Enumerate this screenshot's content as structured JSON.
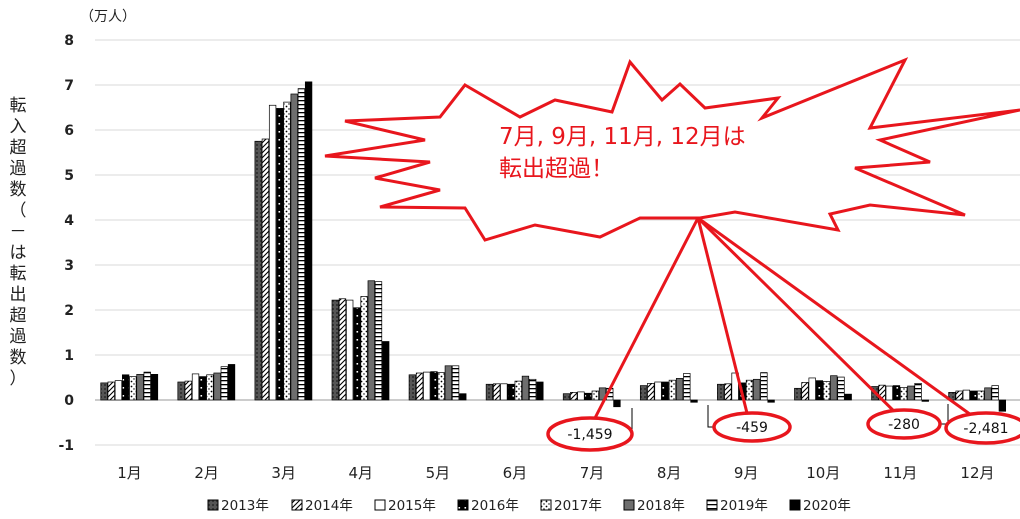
{
  "chart_data": {
    "type": "bar",
    "unit": "（万人）",
    "ylabel": "転入超過数（－は転出超過数）",
    "ylim": [
      -1,
      8
    ],
    "yticks": [
      -1,
      0,
      1,
      2,
      3,
      4,
      5,
      6,
      7,
      8
    ],
    "grid": true,
    "legend_position": "bottom",
    "categories": [
      "1月",
      "2月",
      "3月",
      "4月",
      "5月",
      "6月",
      "7月",
      "8月",
      "9月",
      "10月",
      "11月",
      "12月"
    ],
    "series": [
      {
        "name": "2013年",
        "values": [
          0.38,
          0.4,
          5.75,
          2.22,
          0.56,
          0.35,
          0.14,
          0.32,
          0.35,
          0.26,
          0.3,
          0.17
        ]
      },
      {
        "name": "2014年",
        "values": [
          0.4,
          0.42,
          5.8,
          2.25,
          0.6,
          0.36,
          0.17,
          0.37,
          0.36,
          0.39,
          0.33,
          0.2
        ]
      },
      {
        "name": "2015年",
        "values": [
          0.43,
          0.58,
          6.55,
          2.22,
          0.62,
          0.36,
          0.18,
          0.4,
          0.6,
          0.49,
          0.31,
          0.22
        ]
      },
      {
        "name": "2016年",
        "values": [
          0.56,
          0.52,
          6.48,
          2.05,
          0.63,
          0.35,
          0.15,
          0.4,
          0.38,
          0.43,
          0.32,
          0.2
        ]
      },
      {
        "name": "2017年",
        "values": [
          0.52,
          0.56,
          6.62,
          2.3,
          0.61,
          0.42,
          0.2,
          0.44,
          0.44,
          0.41,
          0.28,
          0.2
        ]
      },
      {
        "name": "2018年",
        "values": [
          0.57,
          0.6,
          6.8,
          2.65,
          0.76,
          0.53,
          0.27,
          0.48,
          0.46,
          0.54,
          0.31,
          0.27
        ]
      },
      {
        "name": "2019年",
        "values": [
          0.62,
          0.74,
          6.92,
          2.63,
          0.76,
          0.46,
          0.26,
          0.59,
          0.61,
          0.51,
          0.37,
          0.32
        ]
      },
      {
        "name": "2020年",
        "values": [
          0.57,
          0.79,
          7.07,
          1.3,
          0.14,
          0.4,
          -0.15,
          -0.05,
          -0.05,
          0.13,
          -0.03,
          -0.25
        ]
      }
    ],
    "annotations": [
      {
        "text": "-1,459",
        "month": "7月"
      },
      {
        "text": "-459",
        "month": "9月"
      },
      {
        "text": "-280",
        "month": "11月"
      },
      {
        "text": "-2,481",
        "month": "12月"
      }
    ],
    "callout": [
      "7月, 9月, 11月, 12月は",
      "転出超過！"
    ],
    "colors": {
      "accent": "#e8161d",
      "bar": "#000000",
      "grid": "#d9d9d9"
    }
  }
}
